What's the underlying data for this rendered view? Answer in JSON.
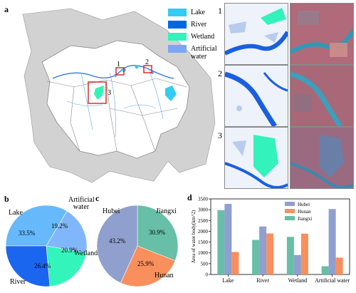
{
  "panels": {
    "a": "a",
    "b": "b",
    "c": "c",
    "d": "d"
  },
  "map": {
    "legend": [
      {
        "label": "Lake",
        "color": "#33ccf2"
      },
      {
        "label": "River",
        "color": "#0066e6"
      },
      {
        "label": "Wetland",
        "color": "#33f2bb"
      },
      {
        "label": "Artificial water",
        "color": "#7aa6f2"
      }
    ],
    "box_labels": [
      "1",
      "2",
      "3"
    ]
  },
  "thumbnails": {
    "labels": [
      "1",
      "2",
      "3"
    ]
  },
  "chart_data": [
    {
      "type": "pie",
      "panel": "b",
      "slices": [
        {
          "label": "Lake",
          "value": 33.5,
          "color": "#66b9fb"
        },
        {
          "label": "Artificial water",
          "value": 19.2,
          "color": "#80b7fa"
        },
        {
          "label": "Wetland",
          "value": 20.9,
          "color": "#33f5bb"
        },
        {
          "label": "River",
          "value": 26.4,
          "color": "#1a66ee"
        }
      ],
      "value_labels": [
        "33.5%",
        "19.2%",
        "20.9%",
        "26.4%"
      ]
    },
    {
      "type": "pie",
      "panel": "c",
      "slices": [
        {
          "label": "Jiangxi",
          "value": 30.9,
          "color": "#66bfa6"
        },
        {
          "label": "Hunan",
          "value": 25.9,
          "color": "#f98f5c"
        },
        {
          "label": "Hubei",
          "value": 43.2,
          "color": "#8f9fce"
        }
      ],
      "value_labels": [
        "30.9%",
        "25.9%",
        "43.2%"
      ]
    },
    {
      "type": "bar",
      "panel": "d",
      "categories": [
        "Lake",
        "River",
        "Wetland",
        "Artificial water"
      ],
      "series": [
        {
          "name": "Jiangxi",
          "color": "#66bfa6",
          "values": [
            2980,
            1600,
            1740,
            380
          ]
        },
        {
          "name": "Hubei",
          "color": "#8f9fce",
          "values": [
            3270,
            2220,
            900,
            3030
          ]
        },
        {
          "name": "Hunan",
          "color": "#f98f5c",
          "values": [
            1040,
            1900,
            1890,
            780
          ]
        }
      ],
      "legend_order": [
        "Hubei",
        "Hunan",
        "Jiangxi"
      ],
      "ylabel": "Area of water body(km^2)",
      "ylim": [
        0,
        3500
      ],
      "yticks": [
        "0",
        "500",
        "1000",
        "1500",
        "2000",
        "2500",
        "3000",
        "3500"
      ],
      "legend_position": "top-right",
      "grid": false
    }
  ]
}
